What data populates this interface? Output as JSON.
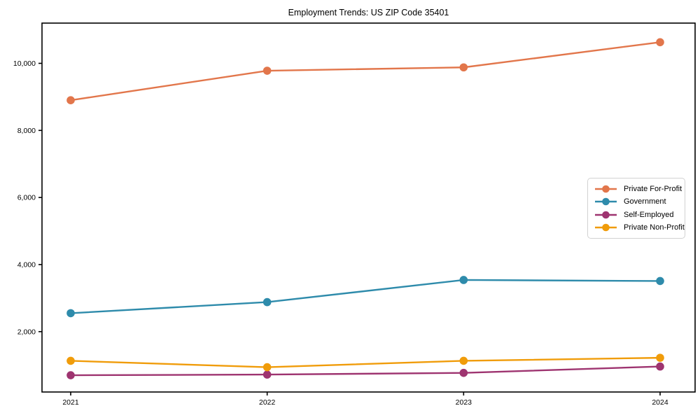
{
  "chart_data": {
    "type": "line",
    "title": "Employment Trends: US ZIP Code 35401",
    "xlabel": "",
    "ylabel": "",
    "x": [
      "2021",
      "2022",
      "2023",
      "2024"
    ],
    "series": [
      {
        "name": "Private For-Profit",
        "color": "#e2764b",
        "values": [
          8900,
          9780,
          9880,
          10630
        ]
      },
      {
        "name": "Government",
        "color": "#2e8bab",
        "values": [
          2550,
          2880,
          3540,
          3510
        ]
      },
      {
        "name": "Self-Employed",
        "color": "#9e3470",
        "values": [
          700,
          720,
          770,
          960
        ]
      },
      {
        "name": "Private Non-Profit",
        "color": "#f09c0a",
        "values": [
          1130,
          940,
          1130,
          1220
        ]
      }
    ],
    "yticks": [
      2000,
      4000,
      6000,
      8000,
      10000
    ],
    "ytick_labels": [
      "2,000",
      "4,000",
      "6,000",
      "8,000",
      "10,000"
    ],
    "ylim": [
      200,
      11200
    ],
    "grid": false,
    "legend_position": "center-right",
    "marker": "circle",
    "axis_color": "#000000"
  }
}
